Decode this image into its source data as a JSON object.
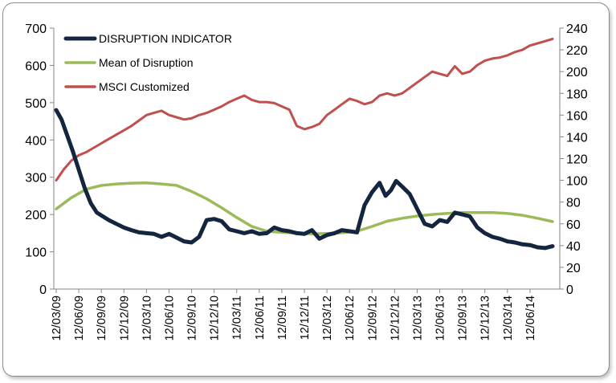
{
  "chart_data": {
    "type": "line",
    "x_labels": [
      "12/03/09",
      "12/06/09",
      "12/09/09",
      "12/12/09",
      "12/03/10",
      "12/06/10",
      "12/09/10",
      "12/12/10",
      "12/03/11",
      "12/06/11",
      "12/09/11",
      "12/12/11",
      "12/03/12",
      "12/06/12",
      "12/09/12",
      "12/12/12",
      "12/03/13",
      "12/06/13",
      "12/09/13",
      "12/12/13",
      "12/03/14",
      "12/06/14"
    ],
    "x_range_months": [
      0,
      66
    ],
    "y_left": {
      "range": [
        0,
        700
      ],
      "ticks": [
        0,
        100,
        200,
        300,
        400,
        500,
        600,
        700
      ]
    },
    "y_right": {
      "range": [
        0,
        240
      ],
      "ticks": [
        0,
        20,
        40,
        60,
        80,
        100,
        120,
        140,
        160,
        180,
        200,
        220,
        240
      ]
    },
    "grid": false,
    "legend_position": "top-left",
    "series": [
      {
        "name": "DISRUPTION INDICATOR",
        "axis": "left",
        "color": "#14253f",
        "points": [
          [
            0,
            480
          ],
          [
            0.7,
            455
          ],
          [
            1.5,
            410
          ],
          [
            2.2,
            370
          ],
          [
            3,
            320
          ],
          [
            3.8,
            270
          ],
          [
            4.6,
            230
          ],
          [
            5.4,
            205
          ],
          [
            6.2,
            195
          ],
          [
            7,
            185
          ],
          [
            8,
            175
          ],
          [
            9,
            165
          ],
          [
            10,
            158
          ],
          [
            11,
            152
          ],
          [
            12,
            150
          ],
          [
            13,
            148
          ],
          [
            14,
            140
          ],
          [
            15,
            148
          ],
          [
            16,
            138
          ],
          [
            17,
            128
          ],
          [
            18,
            125
          ],
          [
            19,
            140
          ],
          [
            20,
            185
          ],
          [
            21,
            188
          ],
          [
            22,
            182
          ],
          [
            23,
            160
          ],
          [
            24,
            155
          ],
          [
            25,
            150
          ],
          [
            26,
            155
          ],
          [
            27,
            148
          ],
          [
            28,
            150
          ],
          [
            29,
            165
          ],
          [
            30,
            158
          ],
          [
            31,
            155
          ],
          [
            32,
            150
          ],
          [
            33,
            148
          ],
          [
            34,
            158
          ],
          [
            35,
            135
          ],
          [
            36,
            145
          ],
          [
            37,
            150
          ],
          [
            38,
            158
          ],
          [
            39,
            155
          ],
          [
            40,
            152
          ],
          [
            41,
            225
          ],
          [
            42,
            260
          ],
          [
            43,
            285
          ],
          [
            43.8,
            250
          ],
          [
            44.5,
            265
          ],
          [
            45.2,
            290
          ],
          [
            46,
            275
          ],
          [
            47,
            255
          ],
          [
            48,
            215
          ],
          [
            49,
            175
          ],
          [
            50,
            168
          ],
          [
            51,
            185
          ],
          [
            52,
            180
          ],
          [
            53,
            205
          ],
          [
            54,
            200
          ],
          [
            55,
            195
          ],
          [
            56,
            165
          ],
          [
            57,
            150
          ],
          [
            58,
            140
          ],
          [
            59,
            135
          ],
          [
            60,
            128
          ],
          [
            61,
            125
          ],
          [
            62,
            120
          ],
          [
            63,
            118
          ],
          [
            64,
            112
          ],
          [
            65,
            110
          ],
          [
            66,
            115
          ]
        ]
      },
      {
        "name": "Mean of Disruption",
        "axis": "left",
        "color": "#9bbb59",
        "points": [
          [
            0,
            215
          ],
          [
            2,
            245
          ],
          [
            4,
            268
          ],
          [
            6,
            278
          ],
          [
            8,
            282
          ],
          [
            10,
            284
          ],
          [
            12,
            285
          ],
          [
            14,
            282
          ],
          [
            16,
            278
          ],
          [
            18,
            262
          ],
          [
            20,
            242
          ],
          [
            22,
            218
          ],
          [
            24,
            192
          ],
          [
            26,
            168
          ],
          [
            28,
            155
          ],
          [
            30,
            152
          ],
          [
            32,
            150
          ],
          [
            34,
            148
          ],
          [
            36,
            149
          ],
          [
            38,
            151
          ],
          [
            40,
            155
          ],
          [
            42,
            168
          ],
          [
            44,
            182
          ],
          [
            46,
            190
          ],
          [
            48,
            196
          ],
          [
            50,
            200
          ],
          [
            52,
            203
          ],
          [
            54,
            205
          ],
          [
            56,
            205
          ],
          [
            58,
            205
          ],
          [
            60,
            203
          ],
          [
            62,
            198
          ],
          [
            64,
            190
          ],
          [
            66,
            181
          ]
        ]
      },
      {
        "name": "MSCI Customized",
        "axis": "right",
        "color": "#c0504d",
        "points": [
          [
            0,
            100
          ],
          [
            1,
            110
          ],
          [
            2,
            118
          ],
          [
            3,
            123
          ],
          [
            4,
            126
          ],
          [
            5,
            130
          ],
          [
            6,
            134
          ],
          [
            7,
            138
          ],
          [
            8,
            142
          ],
          [
            9,
            146
          ],
          [
            10,
            150
          ],
          [
            11,
            155
          ],
          [
            12,
            160
          ],
          [
            13,
            162
          ],
          [
            14,
            164
          ],
          [
            15,
            160
          ],
          [
            16,
            158
          ],
          [
            17,
            156
          ],
          [
            18,
            157
          ],
          [
            19,
            160
          ],
          [
            20,
            162
          ],
          [
            21,
            165
          ],
          [
            22,
            168
          ],
          [
            23,
            172
          ],
          [
            24,
            175
          ],
          [
            25,
            178
          ],
          [
            26,
            174
          ],
          [
            27,
            172
          ],
          [
            28,
            172
          ],
          [
            29,
            171
          ],
          [
            30,
            168
          ],
          [
            31,
            165
          ],
          [
            32,
            150
          ],
          [
            33,
            147
          ],
          [
            34,
            149
          ],
          [
            35,
            152
          ],
          [
            36,
            160
          ],
          [
            37,
            165
          ],
          [
            38,
            170
          ],
          [
            39,
            175
          ],
          [
            40,
            173
          ],
          [
            41,
            170
          ],
          [
            42,
            172
          ],
          [
            43,
            178
          ],
          [
            44,
            180
          ],
          [
            45,
            178
          ],
          [
            46,
            180
          ],
          [
            47,
            185
          ],
          [
            48,
            190
          ],
          [
            49,
            195
          ],
          [
            50,
            200
          ],
          [
            51,
            198
          ],
          [
            52,
            196
          ],
          [
            53,
            205
          ],
          [
            54,
            198
          ],
          [
            55,
            200
          ],
          [
            56,
            206
          ],
          [
            57,
            210
          ],
          [
            58,
            212
          ],
          [
            59,
            213
          ],
          [
            60,
            215
          ],
          [
            61,
            218
          ],
          [
            62,
            220
          ],
          [
            63,
            224
          ],
          [
            64,
            226
          ],
          [
            65,
            228
          ],
          [
            66,
            230
          ]
        ]
      }
    ]
  }
}
